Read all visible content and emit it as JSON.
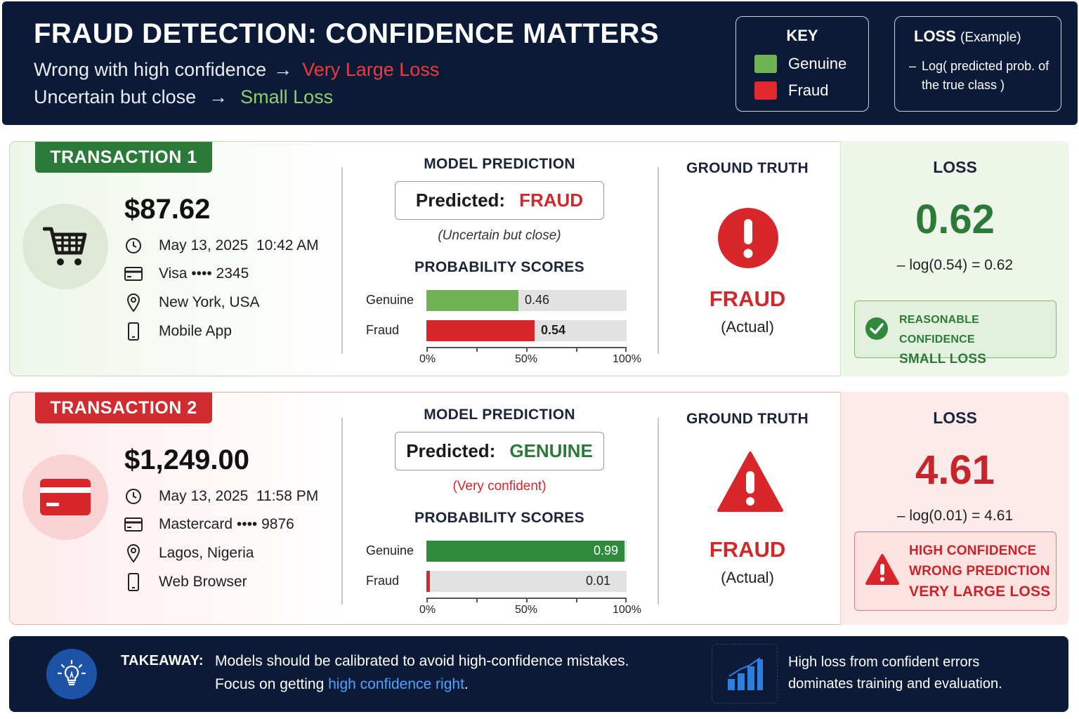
{
  "header": {
    "title": "FRAUD DETECTION: CONFIDENCE MATTERS",
    "line1_prefix": "Wrong with high confidence",
    "line1_arrow": "→",
    "line1_result": "Very Large Loss",
    "line2_prefix": "Uncertain but close",
    "line2_arrow": "→",
    "line2_result": "Small Loss"
  },
  "key": {
    "title": "KEY",
    "items": [
      {
        "label": "Genuine",
        "color": "#6fb356"
      },
      {
        "label": "Fraud",
        "color": "#e0282d"
      }
    ]
  },
  "loss_example": {
    "title": "LOSS",
    "title_suffix": "(Example)",
    "dash": "–",
    "description": "Log( predicted prob. of the true class )"
  },
  "transactions": [
    {
      "tab": "TRANSACTION 1",
      "icon": "shopping-cart-icon",
      "amount": "$87.62",
      "datetime": "May 13, 2025  10:42 AM",
      "card": "Visa •••• 2345",
      "location": "New York, USA",
      "channel": "Mobile App",
      "model_prediction_title": "MODEL PREDICTION",
      "predicted_label": "Predicted:",
      "predicted_value": "FRAUD",
      "prediction_note": "(Uncertain but close)",
      "probability_title": "PROBABILITY SCORES",
      "bars": [
        {
          "label": "Genuine",
          "value": 0.46,
          "value_text": "0.46",
          "color": "#6fb356"
        },
        {
          "label": "Fraud",
          "value": 0.54,
          "value_text": "0.54",
          "color": "#d8262b"
        }
      ],
      "axis": [
        "0%",
        "50%",
        "100%"
      ],
      "ground_truth_title": "GROUND TRUTH",
      "ground_truth_icon": "exclamation-circle-icon",
      "ground_truth_value": "FRAUD",
      "ground_truth_sub": "(Actual)",
      "loss_title": "LOSS",
      "loss_value": "0.62",
      "loss_equation": "– log(0.54) = 0.62",
      "verdict_icon": "check-circle-icon",
      "verdict_lines": [
        "REASONABLE CONFIDENCE",
        "SMALL LOSS"
      ]
    },
    {
      "tab": "TRANSACTION 2",
      "icon": "credit-card-icon",
      "amount": "$1,249.00",
      "datetime": "May 13, 2025  11:58 PM",
      "card": "Mastercard •••• 9876",
      "location": "Lagos, Nigeria",
      "channel": "Web Browser",
      "model_prediction_title": "MODEL PREDICTION",
      "predicted_label": "Predicted:",
      "predicted_value": "GENUINE",
      "prediction_note": "(Very confident)",
      "probability_title": "PROBABILITY SCORES",
      "bars": [
        {
          "label": "Genuine",
          "value": 0.99,
          "value_text": "0.99",
          "color": "#2e8b3b"
        },
        {
          "label": "Fraud",
          "value": 0.01,
          "value_text": "0.01",
          "color": "#d8262b"
        }
      ],
      "axis": [
        "0%",
        "50%",
        "100%"
      ],
      "ground_truth_title": "GROUND TRUTH",
      "ground_truth_icon": "warning-triangle-icon",
      "ground_truth_value": "FRAUD",
      "ground_truth_sub": "(Actual)",
      "loss_title": "LOSS",
      "loss_value": "4.61",
      "loss_equation": "– log(0.01) = 4.61",
      "verdict_icon": "warning-triangle-icon",
      "verdict_lines": [
        "HIGH CONFIDENCE",
        "WRONG PREDICTION",
        "VERY LARGE LOSS"
      ]
    }
  ],
  "footer": {
    "takeaway_label": "TAKEAWAY:",
    "line1": "Models should be calibrated to avoid high-confidence mistakes.",
    "line2_prefix": "Focus on getting ",
    "line2_highlight": "high confidence right",
    "line2_suffix": ".",
    "right_line1": "High loss from confident errors",
    "right_line2": "dominates training and evaluation."
  },
  "colors": {
    "navy": "#0b1a36",
    "green": "#2c7a3a",
    "red": "#d0282b",
    "highlight_blue": "#4fa3ff"
  }
}
